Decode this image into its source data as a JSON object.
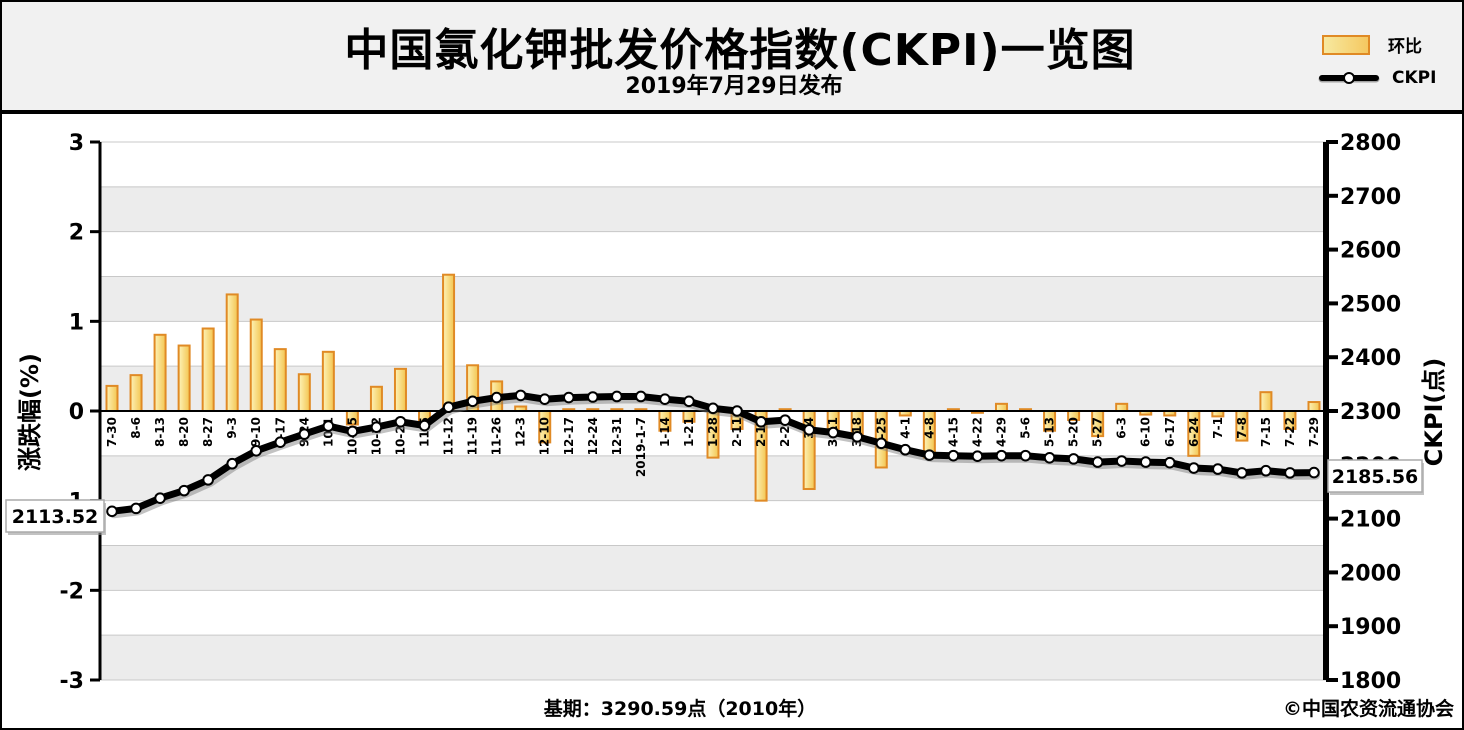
{
  "header": {
    "title": "中国氯化钾批发价格指数(CKPI)一览图",
    "subtitle": "2019年7月29日发布"
  },
  "legend": {
    "bar_label": "环比",
    "line_label": "CKPI",
    "bar_color": "#f5c860",
    "bar_border_color": "#e08a25",
    "line_color": "#000000"
  },
  "footer": {
    "baseline": "基期：3290.59点（2010年）",
    "credit": "©中国农资流通协会"
  },
  "chart_data": {
    "type": "bar+line",
    "title": "中国氯化钾批发价格指数(CKPI)一览图",
    "subtitle": "2019年7月29日发布",
    "left_axis": {
      "label": "涨跌幅(%)",
      "range": [
        -3,
        3
      ],
      "ticks": [
        3,
        2,
        1,
        0,
        -1,
        -2,
        -3
      ]
    },
    "right_axis": {
      "label": "CKPI(点)",
      "range": [
        1800,
        2800
      ],
      "ticks": [
        2800,
        2700,
        2600,
        2500,
        2400,
        2300,
        2200,
        2100,
        2000,
        1900,
        1800
      ]
    },
    "grid": true,
    "legend_position": "top-right",
    "categories": [
      "7-30",
      "8-6",
      "8-13",
      "8-20",
      "8-27",
      "9-3",
      "9-10",
      "9-17",
      "9-24",
      "10-1",
      "10-15",
      "10-22",
      "10-29",
      "11-5",
      "11-12",
      "11-19",
      "11-26",
      "12-3",
      "12-10",
      "12-17",
      "12-24",
      "12-31",
      "2019-1-7",
      "1-14",
      "1-21",
      "1-28",
      "2-11",
      "2-18",
      "2-25",
      "3-4",
      "3-11",
      "3-18",
      "3-25",
      "4-1",
      "4-8",
      "4-15",
      "4-22",
      "4-29",
      "5-6",
      "5-13",
      "5-20",
      "5-27",
      "6-3",
      "6-10",
      "6-17",
      "6-24",
      "7-1",
      "7-8",
      "7-15",
      "7-22",
      "7-29"
    ],
    "series": [
      {
        "name": "环比",
        "type": "bar",
        "axis": "left",
        "values": [
          0.28,
          0.4,
          0.85,
          0.73,
          0.92,
          1.3,
          1.02,
          0.69,
          0.41,
          0.66,
          -0.15,
          0.27,
          0.47,
          -0.12,
          1.52,
          0.51,
          0.33,
          0.05,
          -0.35,
          0.02,
          0.02,
          0.02,
          0.02,
          -0.22,
          -0.12,
          -0.52,
          -0.2,
          -1.0,
          0.02,
          -0.87,
          -0.22,
          -0.3,
          -0.63,
          -0.05,
          -0.52,
          0.02,
          -0.02,
          0.08,
          0.02,
          -0.22,
          -0.1,
          -0.28,
          0.08,
          -0.04,
          -0.05,
          -0.5,
          -0.06,
          -0.33,
          0.21,
          -0.2,
          0.1
        ]
      },
      {
        "name": "CKPI",
        "type": "line",
        "axis": "right",
        "values": [
          2113.52,
          2119,
          2138,
          2152,
          2172,
          2202,
          2226,
          2242,
          2257,
          2272,
          2262,
          2270,
          2280,
          2273,
          2307,
          2318,
          2325,
          2329,
          2322,
          2325,
          2326,
          2327,
          2327,
          2322,
          2318,
          2305,
          2300,
          2280,
          2283,
          2265,
          2260,
          2252,
          2240,
          2228,
          2218,
          2217,
          2216,
          2217,
          2217,
          2213,
          2211,
          2205,
          2207,
          2205,
          2204,
          2194,
          2192,
          2185,
          2189,
          2185,
          2185.56
        ]
      }
    ],
    "annotations": {
      "first_point_label": "2113.52",
      "last_point_label": "2185.56"
    }
  }
}
